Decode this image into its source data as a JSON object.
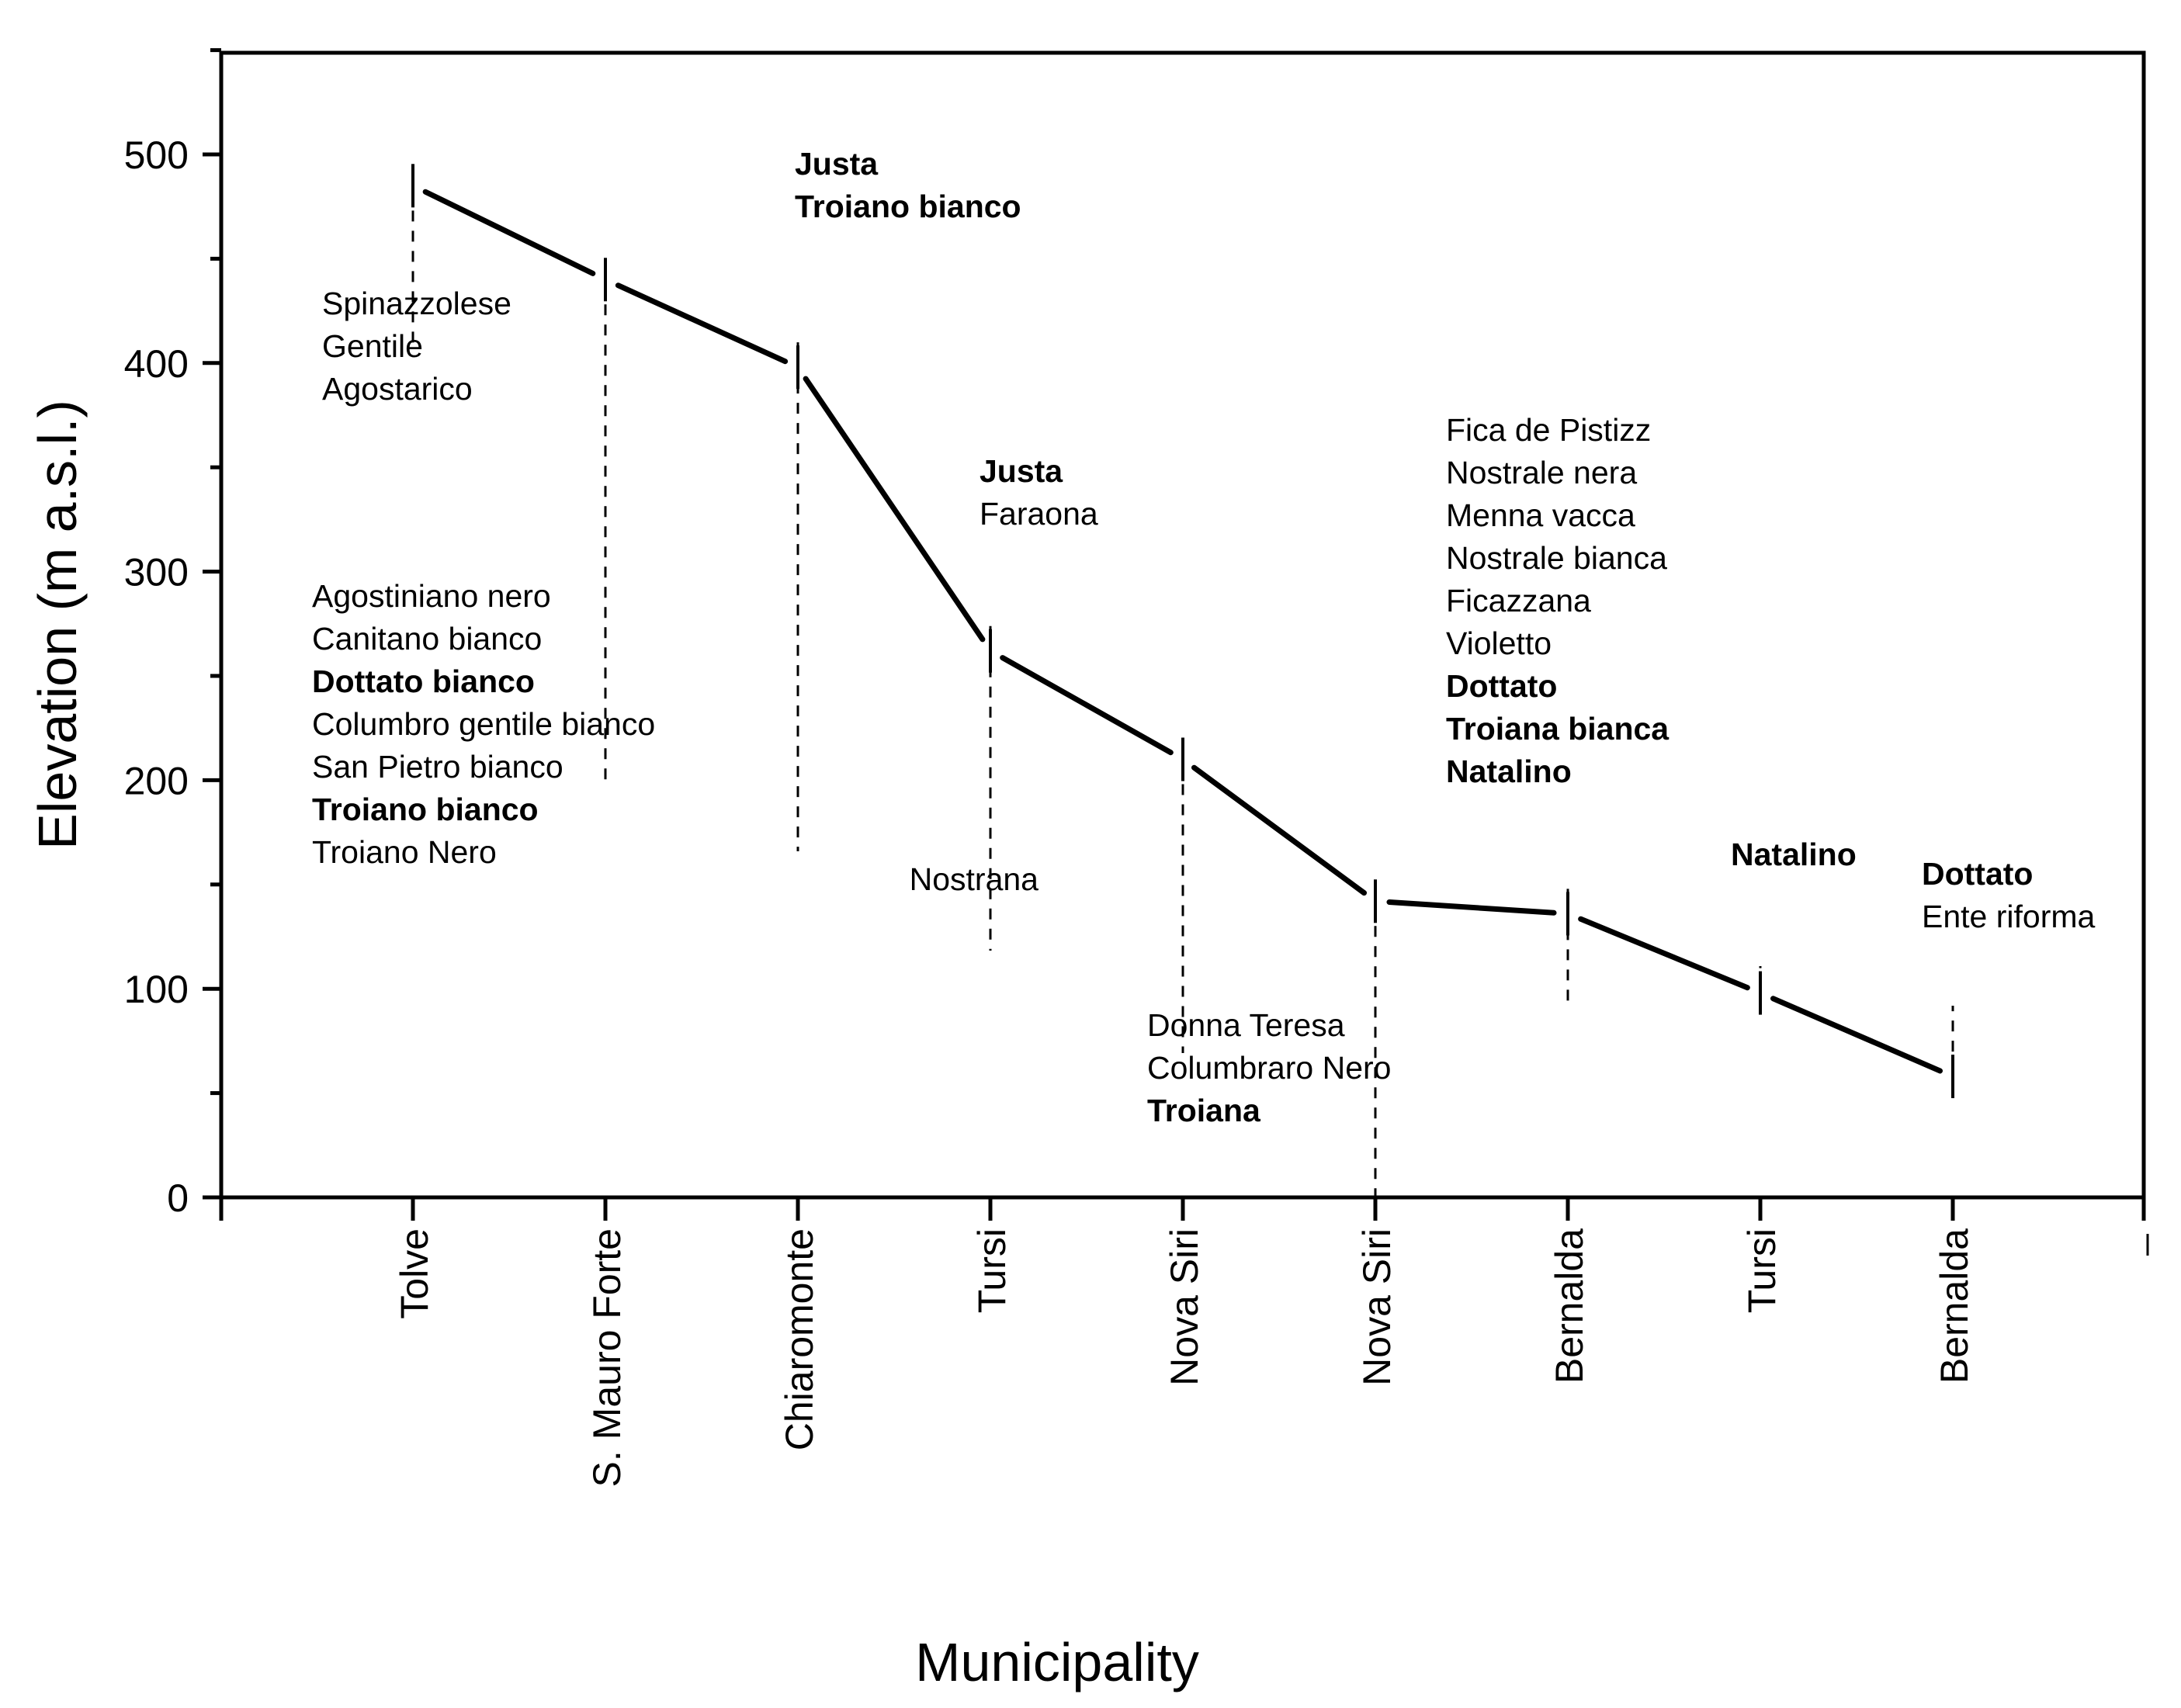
{
  "chart_data": {
    "type": "line",
    "title": "",
    "xlabel": "Municipality",
    "ylabel": "Elevation (m a.s.l.)",
    "ylim": [
      0,
      550
    ],
    "yticks": [
      "0",
      "100",
      "200",
      "300",
      "400",
      "500"
    ],
    "categories": [
      "Tolve",
      "S. Mauro Forte",
      "Chiaromonte",
      "Tursi",
      "Nova Siri",
      "Nova Siri",
      "Bernalda",
      "Tursi",
      "Bernalda"
    ],
    "series": [
      {
        "name": "Elevation",
        "values": [
          485,
          440,
          398,
          262,
          210,
          142,
          136,
          98,
          58
        ]
      }
    ],
    "annotations": [
      {
        "category_index": 0,
        "position": "below",
        "lines": [
          {
            "text": "Spinazzolese",
            "bold": false
          },
          {
            "text": "Gentile",
            "bold": false
          },
          {
            "text": "Agostarico",
            "bold": false
          }
        ]
      },
      {
        "category_index": 1,
        "position": "below",
        "lines": [
          {
            "text": "Agostiniano nero",
            "bold": false
          },
          {
            "text": "Canitano bianco",
            "bold": false
          },
          {
            "text": "Dottato bianco",
            "bold": true
          },
          {
            "text": "Columbro gentile bianco",
            "bold": false
          },
          {
            "text": "San Pietro bianco",
            "bold": false
          },
          {
            "text": "Troiano bianco",
            "bold": true
          },
          {
            "text": "Troiano Nero",
            "bold": false
          }
        ]
      },
      {
        "category_index": 2,
        "position": "above",
        "lines": [
          {
            "text": "Justa",
            "bold": true
          },
          {
            "text": "Troiano bianco",
            "bold": true
          }
        ]
      },
      {
        "category_index": 3,
        "position": "above",
        "lines": [
          {
            "text": "Justa",
            "bold": true
          },
          {
            "text": "Faraona",
            "bold": false
          }
        ]
      },
      {
        "category_index": 4,
        "position": "below",
        "lines": [
          {
            "text": "Nostrana",
            "bold": false
          }
        ]
      },
      {
        "category_index": 5,
        "position": "below",
        "lines": [
          {
            "text": "Donna Teresa",
            "bold": false
          },
          {
            "text": "Columbraro Nero",
            "bold": false
          },
          {
            "text": "Troiana",
            "bold": true
          }
        ]
      },
      {
        "category_index": 6,
        "position": "above",
        "lines": [
          {
            "text": "Fica de Pistizz",
            "bold": false
          },
          {
            "text": "Nostrale nera",
            "bold": false
          },
          {
            "text": "Menna vacca",
            "bold": false
          },
          {
            "text": "Nostrale bianca",
            "bold": false
          },
          {
            "text": "Ficazzana",
            "bold": false
          },
          {
            "text": "Violetto",
            "bold": false
          },
          {
            "text": "Dottato",
            "bold": true
          },
          {
            "text": "Troiana bianca",
            "bold": true
          },
          {
            "text": "Natalino",
            "bold": true
          }
        ]
      },
      {
        "category_index": 7,
        "position": "above",
        "lines": [
          {
            "text": "Natalino",
            "bold": true
          }
        ]
      },
      {
        "category_index": 8,
        "position": "above",
        "lines": [
          {
            "text": "Dottato",
            "bold": true
          },
          {
            "text": "Ente riforma",
            "bold": false
          }
        ]
      }
    ],
    "grid": false,
    "legend": "none"
  }
}
